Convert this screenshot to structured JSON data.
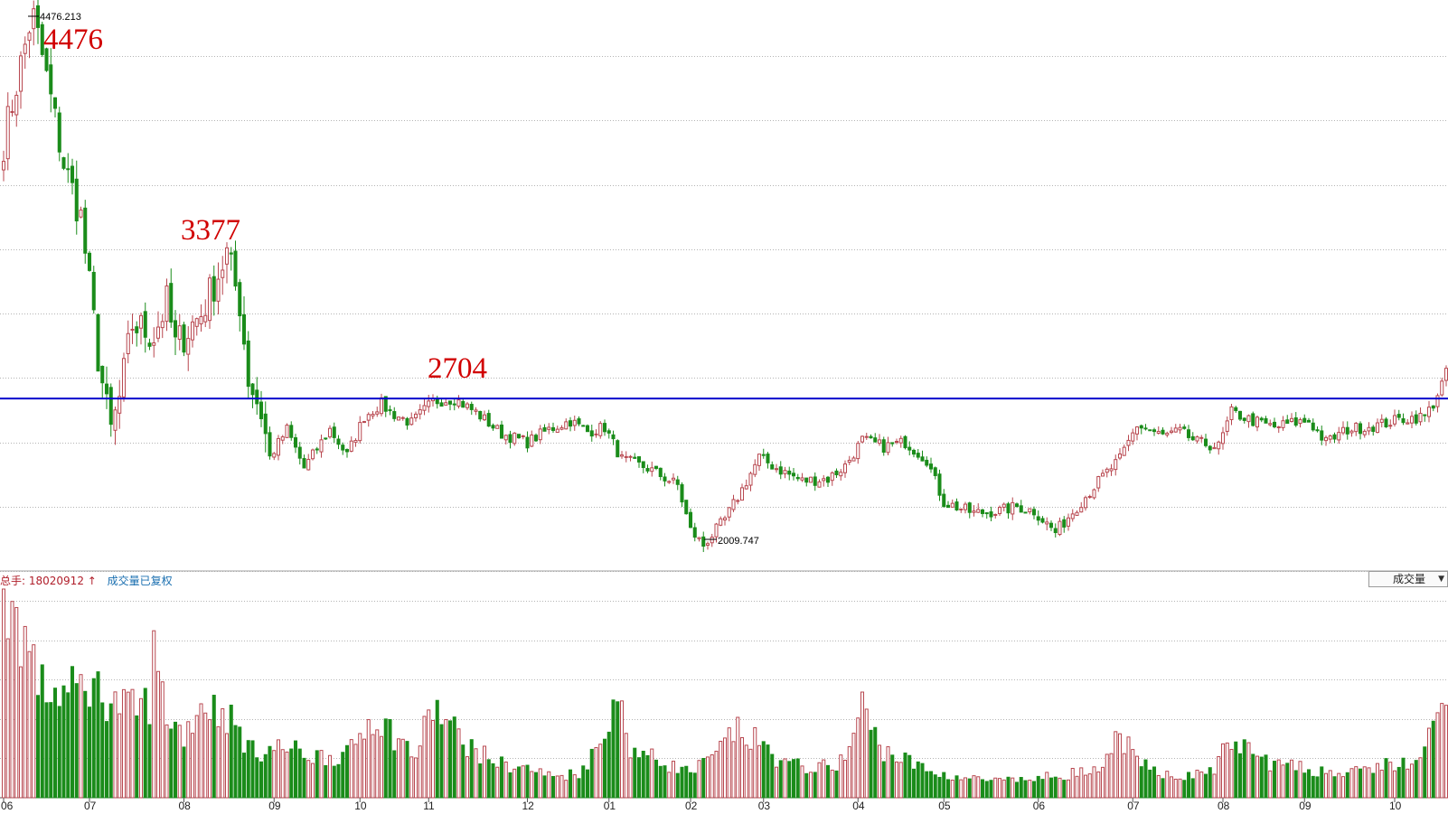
{
  "chart_data": {
    "type": "candlestick-with-volume",
    "price_panel": {
      "high_marker": "4476.213",
      "low_marker": "2009.747",
      "annotations": [
        "4476",
        "3377",
        "2704"
      ],
      "horizontal_line_value": 2704,
      "horizontal_line_color": "#0000cc",
      "ylim": [
        1900,
        4520
      ],
      "gridlines": [
        1900,
        2200,
        2500,
        2800,
        3100,
        3400,
        3700,
        4000,
        4300
      ],
      "up_color": "#b8474f",
      "down_color": "#1a8c1a"
    },
    "volume_panel": {
      "label_prefix": "总手:",
      "label_value": "18020912",
      "label_arrow": "↑",
      "label_suffix": "成交量已复权",
      "dropdown": "成交量"
    },
    "x_tick_labels": [
      "06",
      "07",
      "08",
      "09",
      "10",
      "11",
      "12",
      "01",
      "02",
      "03",
      "04",
      "05",
      "06",
      "07",
      "08",
      "09",
      "10"
    ],
    "x_tick_index": [
      0,
      20,
      42,
      63,
      83,
      99,
      122,
      141,
      160,
      177,
      199,
      219,
      241,
      263,
      284,
      303,
      324
    ],
    "price_anchors": [
      [
        0,
        3900
      ],
      [
        6,
        4440
      ],
      [
        7,
        4476
      ],
      [
        9,
        4300
      ],
      [
        14,
        3800
      ],
      [
        18,
        3550
      ],
      [
        22,
        2900
      ],
      [
        24,
        2650
      ],
      [
        25,
        2550
      ],
      [
        27,
        2700
      ],
      [
        30,
        3050
      ],
      [
        35,
        3000
      ],
      [
        38,
        3150
      ],
      [
        40,
        2950
      ],
      [
        46,
        3100
      ],
      [
        52,
        3377
      ],
      [
        55,
        3150
      ],
      [
        57,
        2800
      ],
      [
        60,
        2640
      ],
      [
        62,
        2430
      ],
      [
        66,
        2560
      ],
      [
        70,
        2380
      ],
      [
        76,
        2560
      ],
      [
        80,
        2440
      ],
      [
        84,
        2620
      ],
      [
        88,
        2680
      ],
      [
        90,
        2640
      ],
      [
        95,
        2590
      ],
      [
        100,
        2690
      ],
      [
        105,
        2704
      ],
      [
        110,
        2640
      ],
      [
        116,
        2540
      ],
      [
        122,
        2500
      ],
      [
        127,
        2560
      ],
      [
        132,
        2600
      ],
      [
        136,
        2550
      ],
      [
        140,
        2570
      ],
      [
        144,
        2420
      ],
      [
        150,
        2380
      ],
      [
        157,
        2300
      ],
      [
        160,
        2090
      ],
      [
        163,
        2020
      ],
      [
        168,
        2140
      ],
      [
        172,
        2280
      ],
      [
        176,
        2430
      ],
      [
        180,
        2380
      ],
      [
        186,
        2320
      ],
      [
        192,
        2330
      ],
      [
        196,
        2390
      ],
      [
        200,
        2510
      ],
      [
        205,
        2480
      ],
      [
        210,
        2500
      ],
      [
        215,
        2420
      ],
      [
        219,
        2220
      ],
      [
        226,
        2170
      ],
      [
        232,
        2180
      ],
      [
        236,
        2200
      ],
      [
        240,
        2180
      ],
      [
        245,
        2080
      ],
      [
        250,
        2200
      ],
      [
        256,
        2340
      ],
      [
        260,
        2420
      ],
      [
        264,
        2580
      ],
      [
        270,
        2530
      ],
      [
        274,
        2550
      ],
      [
        278,
        2500
      ],
      [
        283,
        2480
      ],
      [
        286,
        2640
      ],
      [
        291,
        2600
      ],
      [
        296,
        2570
      ],
      [
        300,
        2590
      ],
      [
        304,
        2600
      ],
      [
        308,
        2500
      ],
      [
        313,
        2560
      ],
      [
        320,
        2580
      ],
      [
        326,
        2610
      ],
      [
        331,
        2620
      ],
      [
        333,
        2680
      ],
      [
        336,
        2820
      ]
    ],
    "volume_anchors": [
      [
        0,
        1.0
      ],
      [
        5,
        0.76
      ],
      [
        9,
        0.52
      ],
      [
        15,
        0.5
      ],
      [
        20,
        0.55
      ],
      [
        26,
        0.45
      ],
      [
        30,
        0.42
      ],
      [
        34,
        0.46
      ],
      [
        35,
        0.68
      ],
      [
        38,
        0.4
      ],
      [
        42,
        0.3
      ],
      [
        46,
        0.46
      ],
      [
        52,
        0.4
      ],
      [
        58,
        0.22
      ],
      [
        65,
        0.24
      ],
      [
        72,
        0.2
      ],
      [
        80,
        0.2
      ],
      [
        86,
        0.4
      ],
      [
        90,
        0.32
      ],
      [
        96,
        0.2
      ],
      [
        100,
        0.44
      ],
      [
        104,
        0.34
      ],
      [
        110,
        0.22
      ],
      [
        116,
        0.16
      ],
      [
        122,
        0.14
      ],
      [
        128,
        0.1
      ],
      [
        134,
        0.12
      ],
      [
        140,
        0.28
      ],
      [
        142,
        0.55
      ],
      [
        146,
        0.24
      ],
      [
        152,
        0.18
      ],
      [
        160,
        0.12
      ],
      [
        166,
        0.2
      ],
      [
        170,
        0.32
      ],
      [
        176,
        0.26
      ],
      [
        182,
        0.16
      ],
      [
        190,
        0.14
      ],
      [
        196,
        0.18
      ],
      [
        200,
        0.44
      ],
      [
        204,
        0.24
      ],
      [
        210,
        0.18
      ],
      [
        216,
        0.12
      ],
      [
        222,
        0.1
      ],
      [
        230,
        0.08
      ],
      [
        236,
        0.08
      ],
      [
        244,
        0.1
      ],
      [
        250,
        0.12
      ],
      [
        256,
        0.12
      ],
      [
        260,
        0.32
      ],
      [
        264,
        0.16
      ],
      [
        270,
        0.12
      ],
      [
        276,
        0.1
      ],
      [
        282,
        0.14
      ],
      [
        286,
        0.28
      ],
      [
        290,
        0.22
      ],
      [
        296,
        0.16
      ],
      [
        302,
        0.14
      ],
      [
        310,
        0.12
      ],
      [
        316,
        0.12
      ],
      [
        322,
        0.16
      ],
      [
        330,
        0.16
      ],
      [
        334,
        0.4
      ],
      [
        336,
        0.44
      ]
    ]
  }
}
